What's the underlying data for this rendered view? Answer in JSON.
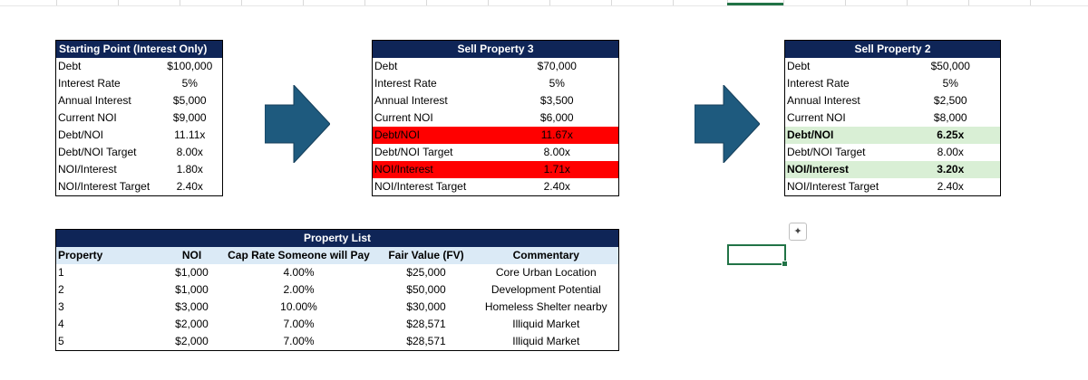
{
  "box1": {
    "title": "Starting Point (Interest Only)",
    "rows": [
      {
        "label": "Debt",
        "value": "$100,000"
      },
      {
        "label": "Interest Rate",
        "value": "5%"
      },
      {
        "label": "Annual Interest",
        "value": "$5,000"
      },
      {
        "label": "Current NOI",
        "value": "$9,000"
      },
      {
        "label": "Debt/NOI",
        "value": "11.11x"
      },
      {
        "label": "Debt/NOI Target",
        "value": "8.00x"
      },
      {
        "label": "NOI/Interest",
        "value": "1.80x"
      },
      {
        "label": "NOI/Interest Target",
        "value": "2.40x"
      }
    ]
  },
  "box2": {
    "title": "Sell Property 3",
    "rows": [
      {
        "label": "Debt",
        "value": "$70,000"
      },
      {
        "label": "Interest Rate",
        "value": "5%"
      },
      {
        "label": "Annual Interest",
        "value": "$3,500"
      },
      {
        "label": "Current NOI",
        "value": "$6,000"
      },
      {
        "label": "Debt/NOI",
        "value": "11.67x"
      },
      {
        "label": "Debt/NOI Target",
        "value": "8.00x"
      },
      {
        "label": "NOI/Interest",
        "value": "1.71x"
      },
      {
        "label": "NOI/Interest Target",
        "value": "2.40x"
      }
    ]
  },
  "box3": {
    "title": "Sell Property 2",
    "rows": [
      {
        "label": "Debt",
        "value": "$50,000"
      },
      {
        "label": "Interest Rate",
        "value": "5%"
      },
      {
        "label": "Annual Interest",
        "value": "$2,500"
      },
      {
        "label": "Current NOI",
        "value": "$8,000"
      },
      {
        "label": "Debt/NOI",
        "value": "6.25x"
      },
      {
        "label": "Debt/NOI Target",
        "value": "8.00x"
      },
      {
        "label": "NOI/Interest",
        "value": "3.20x"
      },
      {
        "label": "NOI/Interest Target",
        "value": "2.40x"
      }
    ]
  },
  "property_list": {
    "title": "Property List",
    "headers": [
      "Property",
      "NOI",
      "Cap Rate Someone will Pay",
      "Fair Value (FV)",
      "Commentary"
    ],
    "rows": [
      [
        "1",
        "$1,000",
        "4.00%",
        "$25,000",
        "Core Urban Location"
      ],
      [
        "2",
        "$1,000",
        "2.00%",
        "$50,000",
        "Development Potential"
      ],
      [
        "3",
        "$3,000",
        "10.00%",
        "$30,000",
        "Homeless Shelter nearby"
      ],
      [
        "4",
        "$2,000",
        "7.00%",
        "$28,571",
        "Illiquid Market"
      ],
      [
        "5",
        "$2,000",
        "7.00%",
        "$28,571",
        "Illiquid Market"
      ]
    ]
  },
  "colors": {
    "header_bg": "#0f2557",
    "alert_red": "#ff0000",
    "ok_green": "#d9efd5",
    "arrow_fill": "#1e5a7e",
    "list_header_bg": "#dbeaf6",
    "selection": "#217346"
  },
  "icons": {
    "quick_analysis": "quick-analysis-icon",
    "arrow": "right-arrow-icon"
  }
}
